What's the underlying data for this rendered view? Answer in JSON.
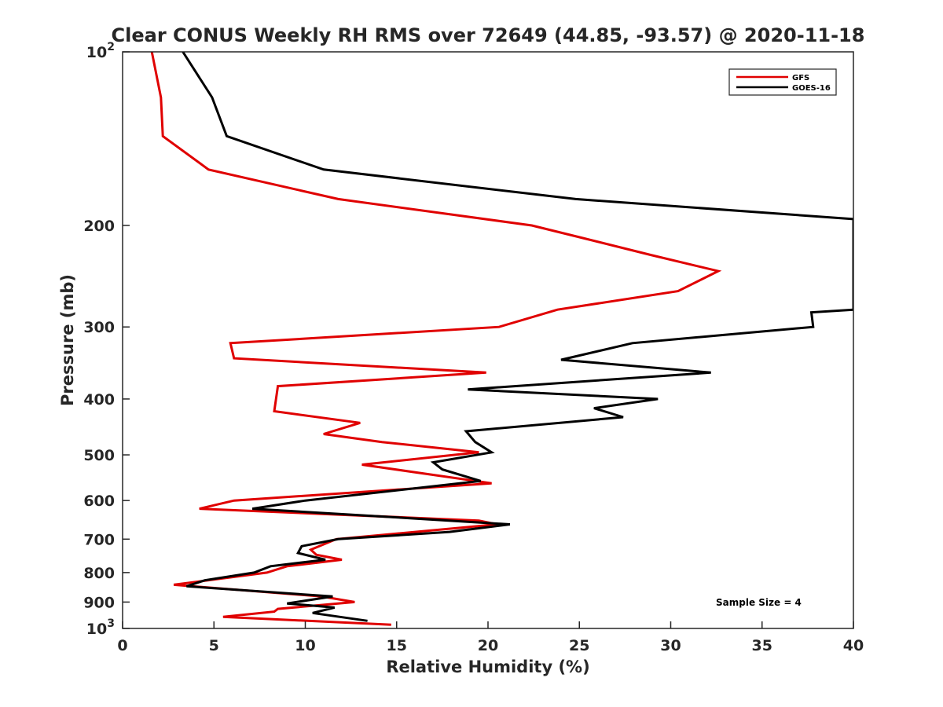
{
  "chart_data": {
    "type": "line",
    "title": "Clear CONUS Weekly RH RMS over 72649 (44.85, -93.57) @ 2020-11-18",
    "xlabel": "Relative Humidity (%)",
    "ylabel": "Pressure (mb)",
    "xlim": [
      0,
      40
    ],
    "ylim": [
      100,
      1000
    ],
    "yscale": "log",
    "yreverse": true,
    "grid": false,
    "legend_position": "top-right",
    "x_ticks": [
      0,
      5,
      10,
      15,
      20,
      25,
      30,
      35,
      40
    ],
    "x_tick_labels": [
      "0",
      "5",
      "10",
      "15",
      "20",
      "25",
      "30",
      "35",
      "40"
    ],
    "y_ticks": [
      100,
      200,
      300,
      400,
      500,
      600,
      700,
      800,
      900,
      1000
    ],
    "y_tick_labels": [
      {
        "base": "10",
        "exp": "2"
      },
      {
        "base": "200",
        "exp": ""
      },
      {
        "base": "300",
        "exp": ""
      },
      {
        "base": "400",
        "exp": ""
      },
      {
        "base": "500",
        "exp": ""
      },
      {
        "base": "600",
        "exp": ""
      },
      {
        "base": "700",
        "exp": ""
      },
      {
        "base": "800",
        "exp": ""
      },
      {
        "base": "900",
        "exp": ""
      },
      {
        "base": "10",
        "exp": "3"
      }
    ],
    "annotation": "Sample Size = 4",
    "series": [
      {
        "name": "GFS",
        "color": "#e00000",
        "points": [
          [
            1.6,
            100
          ],
          [
            2.1,
            120
          ],
          [
            2.2,
            140
          ],
          [
            4.7,
            160
          ],
          [
            11.8,
            180
          ],
          [
            22.4,
            200
          ],
          [
            25.1,
            210
          ],
          [
            28.9,
            225
          ],
          [
            32.6,
            240
          ],
          [
            30.4,
            260
          ],
          [
            23.8,
            280
          ],
          [
            20.6,
            300
          ],
          [
            5.9,
            320
          ],
          [
            6.1,
            340
          ],
          [
            19.9,
            360
          ],
          [
            8.5,
            380
          ],
          [
            8.3,
            420
          ],
          [
            13.0,
            440
          ],
          [
            11.0,
            460
          ],
          [
            14.2,
            475
          ],
          [
            19.5,
            495
          ],
          [
            13.1,
            520
          ],
          [
            20.2,
            560
          ],
          [
            6.1,
            600
          ],
          [
            4.2,
            620
          ],
          [
            19.5,
            650
          ],
          [
            20.5,
            660
          ],
          [
            11.7,
            700
          ],
          [
            10.3,
            730
          ],
          [
            10.6,
            745
          ],
          [
            12.0,
            760
          ],
          [
            9.0,
            780
          ],
          [
            7.9,
            800
          ],
          [
            2.8,
            840
          ],
          [
            10.9,
            880
          ],
          [
            12.7,
            900
          ],
          [
            8.5,
            925
          ],
          [
            8.3,
            935
          ],
          [
            5.5,
            955
          ],
          [
            14.7,
            985
          ]
        ]
      },
      {
        "name": "GOES-16",
        "color": "#000000",
        "points": [
          [
            3.3,
            100
          ],
          [
            4.9,
            120
          ],
          [
            5.7,
            140
          ],
          [
            11.0,
            160
          ],
          [
            24.8,
            180
          ],
          [
            40.0,
            195
          ],
          [
            40.0,
            280
          ],
          [
            37.7,
            283
          ],
          [
            37.8,
            300
          ],
          [
            27.9,
            320
          ],
          [
            24.0,
            342
          ],
          [
            32.2,
            360
          ],
          [
            18.9,
            385
          ],
          [
            29.3,
            400
          ],
          [
            25.8,
            415
          ],
          [
            27.4,
            430
          ],
          [
            18.8,
            455
          ],
          [
            19.3,
            475
          ],
          [
            20.2,
            495
          ],
          [
            17.0,
            515
          ],
          [
            17.5,
            530
          ],
          [
            19.6,
            555
          ],
          [
            10.0,
            600
          ],
          [
            7.1,
            620
          ],
          [
            16.1,
            645
          ],
          [
            21.2,
            660
          ],
          [
            17.9,
            680
          ],
          [
            11.8,
            700
          ],
          [
            9.8,
            720
          ],
          [
            9.6,
            740
          ],
          [
            11.1,
            760
          ],
          [
            8.1,
            780
          ],
          [
            7.2,
            800
          ],
          [
            4.5,
            825
          ],
          [
            3.5,
            845
          ],
          [
            11.5,
            880
          ],
          [
            9.0,
            905
          ],
          [
            11.6,
            920
          ],
          [
            10.4,
            940
          ],
          [
            13.4,
            970
          ]
        ]
      }
    ]
  }
}
